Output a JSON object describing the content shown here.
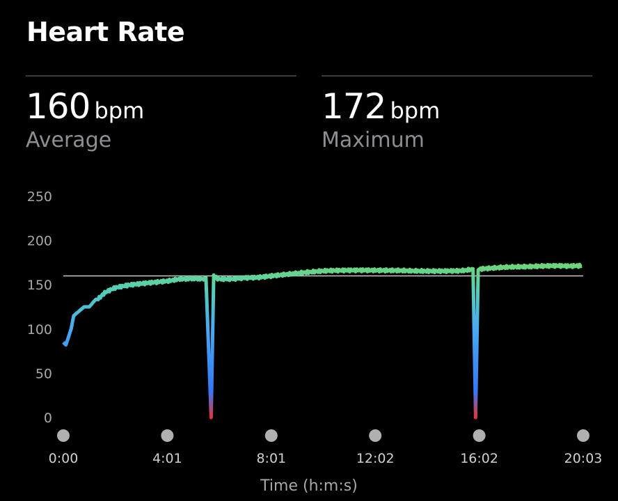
{
  "header": {
    "title": "Heart Rate"
  },
  "stats": [
    {
      "value": "160",
      "unit": "bpm",
      "label": "Average"
    },
    {
      "value": "172",
      "unit": "bpm",
      "label": "Maximum"
    }
  ],
  "chart_data": {
    "type": "line",
    "xlabel": "Time (h:m:s)",
    "ylabel": "",
    "ylim": [
      0,
      250
    ],
    "yticks": [
      0,
      50,
      100,
      150,
      200,
      250
    ],
    "xticks": [
      "0:00",
      "4:01",
      "8:01",
      "12:02",
      "16:02",
      "20:03"
    ],
    "xlim_minutes": [
      0,
      20.05
    ],
    "reference_line": 160,
    "grid": false,
    "series": [
      {
        "x_minutes": [
          0,
          0.1,
          0.3,
          0.4,
          0.6,
          0.8,
          1.0,
          1.3,
          1.6,
          2.0,
          2.5,
          3.0,
          3.5,
          4.0,
          4.5,
          5.0,
          5.5,
          5.7,
          5.8,
          6.0,
          6.5,
          7.0,
          7.5,
          8.0,
          9.0,
          10.0,
          11.0,
          12.0,
          13.0,
          14.0,
          15.0,
          15.8,
          15.9,
          16.0,
          17.0,
          18.0,
          19.0,
          19.5,
          20.0
        ],
        "y_bpm": [
          85,
          82,
          100,
          115,
          120,
          125,
          125,
          135,
          140,
          145,
          148,
          150,
          152,
          154,
          157,
          158,
          158,
          0,
          158,
          158,
          158,
          159,
          159,
          160,
          162,
          164,
          165,
          166,
          167,
          167,
          167,
          168,
          0,
          168,
          169,
          169,
          170,
          170,
          171
        ]
      }
    ],
    "color_stops": [
      {
        "bpm": 0,
        "color": "#e0353d"
      },
      {
        "bpm": 30,
        "color": "#3478f6"
      },
      {
        "bpm": 100,
        "color": "#4aa8f0"
      },
      {
        "bpm": 145,
        "color": "#55d0b8"
      },
      {
        "bpm": 172,
        "color": "#6ed47a"
      }
    ]
  }
}
